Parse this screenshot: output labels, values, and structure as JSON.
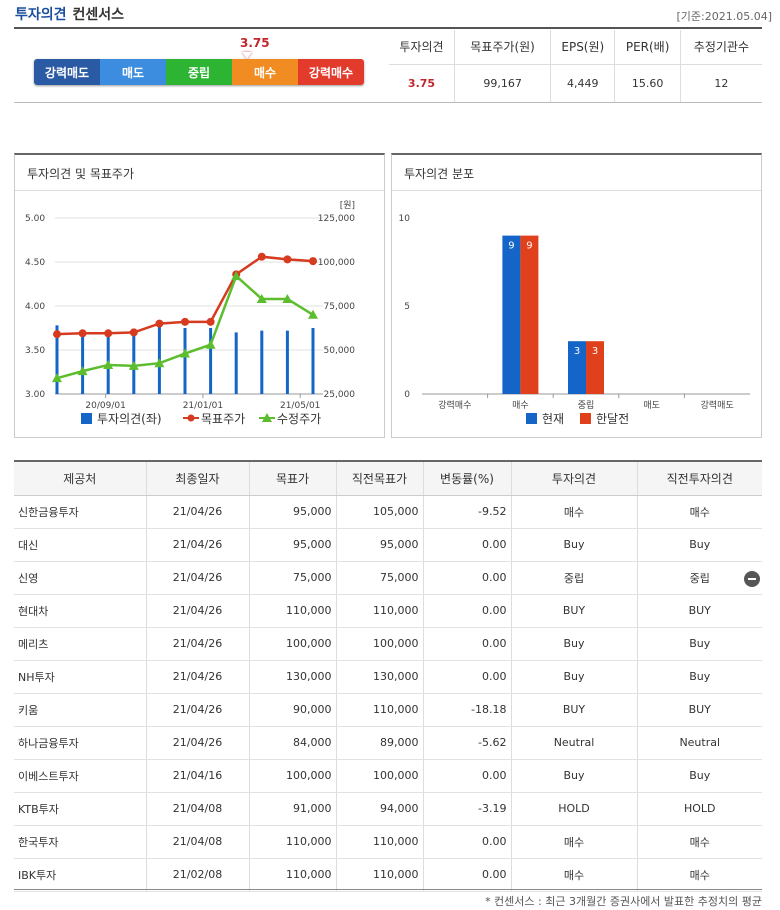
{
  "header": {
    "title": "투자의견",
    "subtitle": "컨센서스",
    "date": "[기준:2021.05.04]"
  },
  "scale": {
    "value": "3.75",
    "segments": [
      {
        "label": "강력매도",
        "color": "#2b5aa5"
      },
      {
        "label": "매도",
        "color": "#3c8de0"
      },
      {
        "label": "중립",
        "color": "#2db432"
      },
      {
        "label": "매수",
        "color": "#f08c21"
      },
      {
        "label": "강력매수",
        "color": "#e23a2b"
      }
    ]
  },
  "summary": {
    "headers": [
      "투자의견",
      "목표주가(원)",
      "EPS(원)",
      "PER(배)",
      "추정기관수"
    ],
    "values": [
      "3.75",
      "99,167",
      "4,449",
      "15.60",
      "12"
    ]
  },
  "panels": {
    "left_title": "투자의견 및 목표주가",
    "right_title": "투자의견 분포"
  },
  "chart_data": [
    {
      "type": "line",
      "title": "투자의견 및 목표주가",
      "x_ticks": [
        "20/09/01",
        "21/01/01",
        "21/05/01"
      ],
      "y_left_ticks": [
        "3.00",
        "3.50",
        "4.00",
        "4.50",
        "5.00"
      ],
      "y_right_ticks": [
        "25,000",
        "50,000",
        "75,000",
        "100,000",
        "125,000"
      ],
      "y_right_unit": "[원]",
      "ylim_left": [
        3.0,
        5.0
      ],
      "ylim_right": [
        25000,
        125000
      ],
      "series": [
        {
          "name": "투자의견(좌)",
          "kind": "bar",
          "color": "#1565c8",
          "values": [
            3.78,
            3.73,
            3.71,
            3.72,
            3.78,
            3.75,
            3.75,
            3.7,
            3.72,
            3.72,
            3.75
          ]
        },
        {
          "name": "목표주가",
          "kind": "line",
          "color": "#d63b1f",
          "values": [
            59000,
            59500,
            59500,
            60000,
            65000,
            66000,
            66000,
            93000,
            103000,
            101500,
            100500
          ]
        },
        {
          "name": "수정주가",
          "kind": "line",
          "color": "#5cbd2e",
          "values": [
            34000,
            38000,
            41500,
            41000,
            42500,
            48000,
            53000,
            92000,
            79000,
            79000,
            70000
          ]
        }
      ]
    },
    {
      "type": "bar",
      "title": "투자의견 분포",
      "categories": [
        "강력매수",
        "매수",
        "중립",
        "매도",
        "강력매도"
      ],
      "ylim": [
        0,
        10
      ],
      "y_ticks": [
        "0",
        "5",
        "10"
      ],
      "series": [
        {
          "name": "현재",
          "color": "#1565c8",
          "values": [
            0,
            9,
            3,
            0,
            0
          ]
        },
        {
          "name": "한달전",
          "color": "#e0401c",
          "values": [
            0,
            9,
            3,
            0,
            0
          ]
        }
      ]
    }
  ],
  "table": {
    "headers": [
      "제공처",
      "최종일자",
      "목표가",
      "직전목표가",
      "변동률(%)",
      "투자의견",
      "직전투자의견"
    ],
    "rows": [
      {
        "provider": "신한금융투자",
        "date": "21/04/26",
        "target": "95,000",
        "prev": "105,000",
        "change": "-9.52",
        "opinion": "매수",
        "prev_opinion": "매수"
      },
      {
        "provider": "대신",
        "date": "21/04/26",
        "target": "95,000",
        "prev": "95,000",
        "change": "0.00",
        "opinion": "Buy",
        "prev_opinion": "Buy"
      },
      {
        "provider": "신영",
        "date": "21/04/26",
        "target": "75,000",
        "prev": "75,000",
        "change": "0.00",
        "opinion": "중립",
        "prev_opinion": "중립"
      },
      {
        "provider": "현대차",
        "date": "21/04/26",
        "target": "110,000",
        "prev": "110,000",
        "change": "0.00",
        "opinion": "BUY",
        "prev_opinion": "BUY"
      },
      {
        "provider": "메리츠",
        "date": "21/04/26",
        "target": "100,000",
        "prev": "100,000",
        "change": "0.00",
        "opinion": "Buy",
        "prev_opinion": "Buy"
      },
      {
        "provider": "NH투자",
        "date": "21/04/26",
        "target": "130,000",
        "prev": "130,000",
        "change": "0.00",
        "opinion": "Buy",
        "prev_opinion": "Buy"
      },
      {
        "provider": "키움",
        "date": "21/04/26",
        "target": "90,000",
        "prev": "110,000",
        "change": "-18.18",
        "opinion": "BUY",
        "prev_opinion": "BUY"
      },
      {
        "provider": "하나금융투자",
        "date": "21/04/26",
        "target": "84,000",
        "prev": "89,000",
        "change": "-5.62",
        "opinion": "Neutral",
        "prev_opinion": "Neutral"
      },
      {
        "provider": "이베스트투자",
        "date": "21/04/16",
        "target": "100,000",
        "prev": "100,000",
        "change": "0.00",
        "opinion": "Buy",
        "prev_opinion": "Buy"
      },
      {
        "provider": "KTB투자",
        "date": "21/04/08",
        "target": "91,000",
        "prev": "94,000",
        "change": "-3.19",
        "opinion": "HOLD",
        "prev_opinion": "HOLD"
      },
      {
        "provider": "한국투자",
        "date": "21/04/08",
        "target": "110,000",
        "prev": "110,000",
        "change": "0.00",
        "opinion": "매수",
        "prev_opinion": "매수"
      },
      {
        "provider": "IBK투자",
        "date": "21/02/08",
        "target": "110,000",
        "prev": "110,000",
        "change": "0.00",
        "opinion": "매수",
        "prev_opinion": "매수"
      }
    ]
  },
  "footnote": "* 컨센서스 : 최근 3개월간 증권사에서 발표한 추정치의 평균"
}
